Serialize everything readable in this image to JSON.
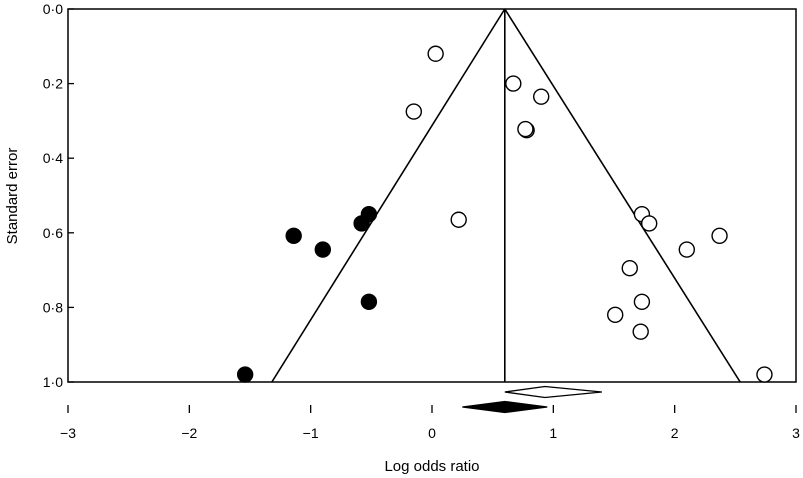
{
  "chart_data": {
    "type": "scatter",
    "xlabel": "Log odds ratio",
    "ylabel": "Standard error",
    "xlim": [
      -3,
      3
    ],
    "ylim": [
      0,
      1
    ],
    "y_reversed": true,
    "x_ticks": [
      -3,
      -2,
      -1,
      0,
      1,
      2,
      3
    ],
    "x_tick_labels": [
      "−3",
      "−2",
      "−1",
      "0",
      "1",
      "2",
      "3"
    ],
    "y_ticks": [
      0,
      0.2,
      0.4,
      0.6,
      0.8,
      1.0
    ],
    "y_tick_labels": [
      "0·0",
      "0·2",
      "0·4",
      "0·6",
      "0·8",
      "1·0"
    ],
    "grid": false,
    "legend": "none",
    "pooled_estimate": 0.6,
    "funnel_apex": [
      0.6,
      0
    ],
    "funnel_base": [
      [
        -1.32,
        1.0
      ],
      [
        2.54,
        1.0
      ]
    ],
    "series": [
      {
        "marker": "open-circle",
        "x": [
          0.03,
          0.67,
          0.9,
          -0.15,
          0.78,
          0.77,
          0.22,
          1.73,
          1.79,
          2.37,
          2.1,
          1.63,
          1.73,
          1.51,
          1.72,
          2.74
        ],
        "y": [
          0.12,
          0.2,
          0.235,
          0.275,
          0.325,
          0.322,
          0.565,
          0.55,
          0.575,
          0.608,
          0.645,
          0.695,
          0.785,
          0.82,
          0.865,
          0.98
        ]
      },
      {
        "marker": "filled-circle",
        "x": [
          -0.52,
          -0.58,
          -1.14,
          -0.9,
          -0.52,
          -1.54
        ],
        "y": [
          0.55,
          0.575,
          0.608,
          0.645,
          0.785,
          0.98
        ]
      }
    ],
    "summary_diamonds": [
      {
        "style": "open",
        "center": 0.93,
        "low": 0.6,
        "high": 1.4,
        "row": 1
      },
      {
        "style": "filled",
        "center": 0.6,
        "low": 0.25,
        "high": 0.95,
        "row": 2
      }
    ],
    "colors": {
      "ink": "#000000",
      "background": "#ffffff"
    }
  }
}
